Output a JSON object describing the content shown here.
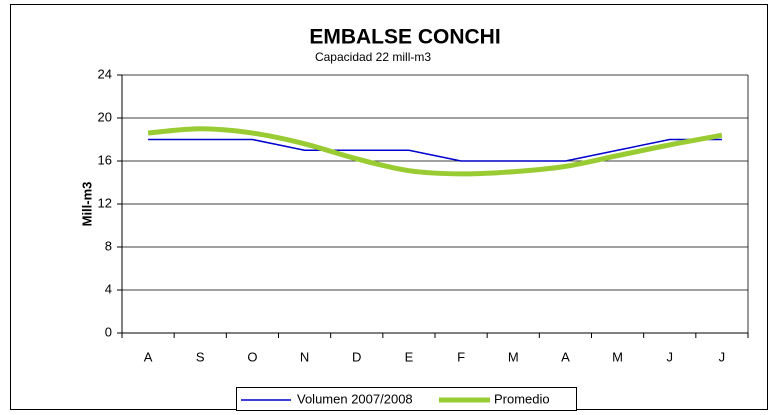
{
  "chart_data": {
    "type": "line",
    "title": "EMBALSE CONCHI",
    "subtitle": "Capacidad 22 mill-m3",
    "y_label": "Mill-m3",
    "categories": [
      "A",
      "S",
      "O",
      "N",
      "D",
      "E",
      "F",
      "M",
      "A",
      "M",
      "J",
      "J"
    ],
    "series": [
      {
        "name": "Volumen  2007/2008",
        "color": "#0000cc",
        "values": [
          18,
          18,
          18,
          17,
          17,
          17,
          16,
          16,
          16,
          17,
          18,
          18
        ]
      },
      {
        "name": "Promedio",
        "color": "#99cc33",
        "values": [
          18.6,
          19.0,
          18.6,
          17.6,
          16.2,
          15.1,
          14.8,
          15.0,
          15.5,
          16.5,
          17.5,
          18.4
        ],
        "smooth": true
      }
    ],
    "ylim": [
      0,
      24
    ],
    "yticks": [
      0,
      4,
      8,
      12,
      16,
      20,
      24
    ],
    "grid": true,
    "legend": "bottom"
  }
}
